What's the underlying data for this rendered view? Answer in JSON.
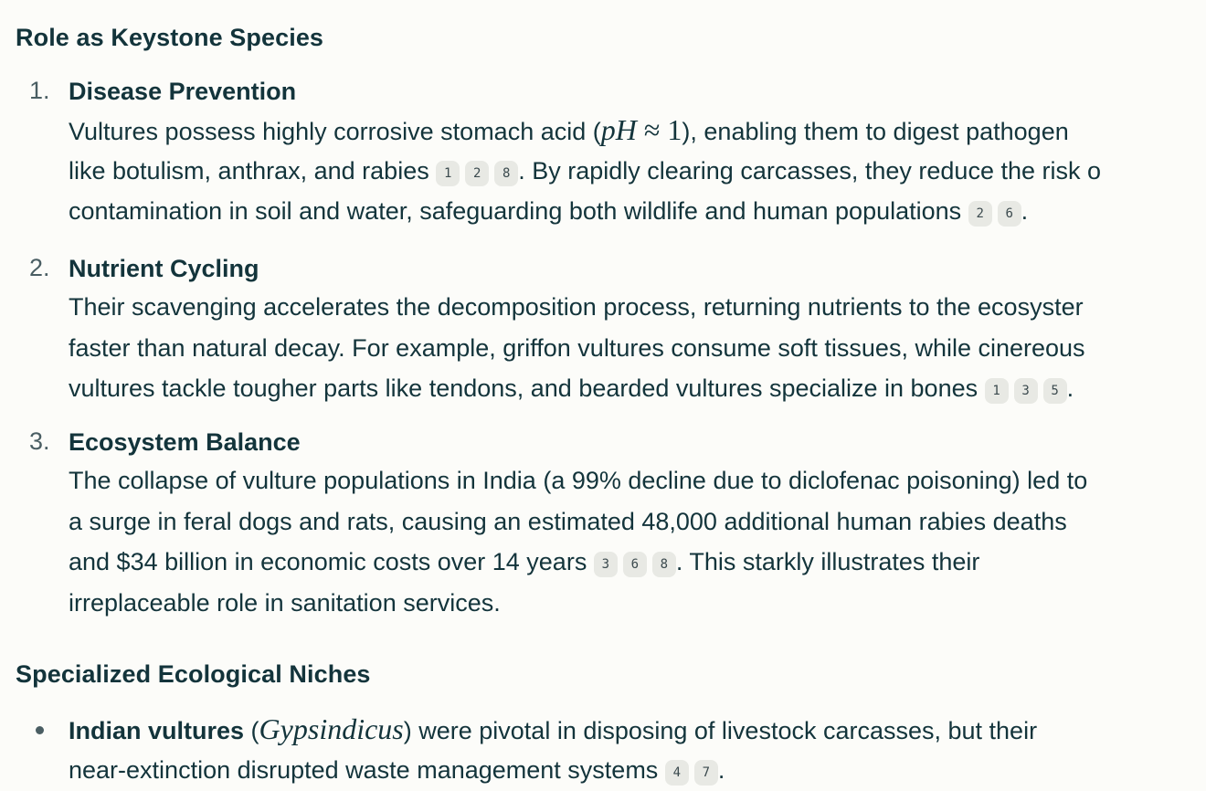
{
  "section1": {
    "heading": "Role as Keystone Species",
    "items": [
      {
        "number": "1.",
        "title": "Disease Prevention",
        "line1_pre": "Vultures possess highly corrosive stomach acid (",
        "math_ph": "pH",
        "math_rel": " ≈ 1",
        "line1_post": "), enabling them to digest pathogen",
        "line2_pre": "like botulism, anthrax, and rabies ",
        "citesA": [
          "1",
          "2",
          "8"
        ],
        "line2_post": ". By rapidly clearing carcasses, they reduce the risk o",
        "line3_pre": "contamination in soil and water, safeguarding both wildlife and human populations ",
        "citesB": [
          "2",
          "6"
        ],
        "line3_post": "."
      },
      {
        "number": "2.",
        "title": "Nutrient Cycling",
        "line1": "Their scavenging accelerates the decomposition process, returning nutrients to the ecosyster",
        "line2": "faster than natural decay. For example, griffon vultures consume soft tissues, while cinereous",
        "line3_pre": "vultures tackle tougher parts like tendons, and bearded vultures specialize in bones ",
        "cites": [
          "1",
          "3",
          "5"
        ],
        "line3_post": "."
      },
      {
        "number": "3.",
        "title": "Ecosystem Balance",
        "line1": "The collapse of vulture populations in India (a 99% decline due to diclofenac poisoning) led to",
        "line2": "a surge in feral dogs and rats, causing an estimated 48,000 additional human rabies deaths",
        "line3_pre": "and $34 billion in economic costs over 14 years ",
        "cites": [
          "3",
          "6",
          "8"
        ],
        "line3_post": ". This starkly illustrates their",
        "line4": "irreplaceable role in sanitation services."
      }
    ]
  },
  "section2": {
    "heading": "Specialized Ecological Niches",
    "bullet1": {
      "bold": "Indian vultures",
      "open_paren": " (",
      "math": "Gypsindicus",
      "post": ") were pivotal in disposing of livestock carcasses, but their",
      "line2_pre": "near-extinction disrupted waste management systems ",
      "cites": [
        "4",
        "7"
      ],
      "line2_post": "."
    }
  }
}
